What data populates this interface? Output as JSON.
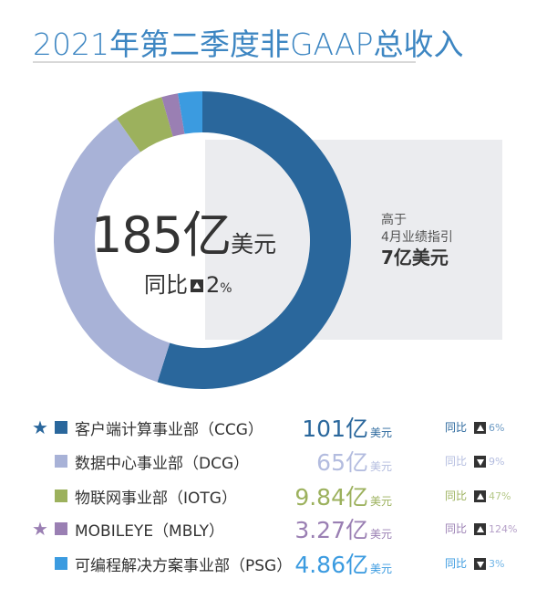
{
  "title": "2021年第二季度非GAAP总收入",
  "center": {
    "total": "185亿",
    "unit": "美元",
    "yoy_label": "同比",
    "yoy_direction": "up",
    "yoy_value": "2",
    "yoy_unit": "%"
  },
  "guidance": {
    "line1": "高于",
    "line2": "4月业绩指引",
    "amount": "7亿美元"
  },
  "chart_data": {
    "type": "pie",
    "title": "2021年第二季度非GAAP总收入",
    "donut": true,
    "unit": "亿美元",
    "categories": [
      "客户端计算事业部（CCG）",
      "数据中心事业部（DCG）",
      "物联网事业部（IOTG）",
      "MOBILEYE（MBLY）",
      "可编程解决方案事业部（PSG）"
    ],
    "values": [
      101,
      65,
      9.84,
      3.27,
      4.86
    ],
    "colors": [
      "#2a679c",
      "#a8b2d7",
      "#9cb15d",
      "#9a7fb3",
      "#3b9be0"
    ],
    "start": "top",
    "direction": "clockwise"
  },
  "legend": [
    {
      "label": "客户端计算事业部（CCG）",
      "value": "101亿",
      "unit": "美元",
      "yoy_label": "同比",
      "direction": "up",
      "yoy": "6%",
      "star": true,
      "color": "#2a679c",
      "text_color": "#2a679c",
      "pct_color": "#6c9ac4"
    },
    {
      "label": "数据中心事业部（DCG）",
      "value": "65亿",
      "unit": "美元",
      "yoy_label": "同比",
      "direction": "down",
      "yoy": "9%",
      "star": false,
      "color": "#a8b2d7",
      "text_color": "#b3bcdf",
      "pct_color": "#b3bcdf"
    },
    {
      "label": "物联网事业部（IOTG）",
      "value": "9.84亿",
      "unit": "美元",
      "yoy_label": "同比",
      "direction": "up",
      "yoy": "47%",
      "star": false,
      "color": "#9cb15d",
      "text_color": "#9cb15d",
      "pct_color": "#b5c888"
    },
    {
      "label": "MOBILEYE（MBLY）",
      "value": "3.27亿",
      "unit": "美元",
      "yoy_label": "同比",
      "direction": "up",
      "yoy": "124%",
      "star": true,
      "color": "#9a7fb3",
      "text_color": "#9a7fb3",
      "pct_color": "#b5a0c8"
    },
    {
      "label": "可编程解决方案事业部（PSG）",
      "value": "4.86亿",
      "unit": "美元",
      "yoy_label": "同比",
      "direction": "down",
      "yoy": "3%",
      "star": false,
      "color": "#3b9be0",
      "text_color": "#3b9be0",
      "pct_color": "#6fb4e6"
    }
  ]
}
